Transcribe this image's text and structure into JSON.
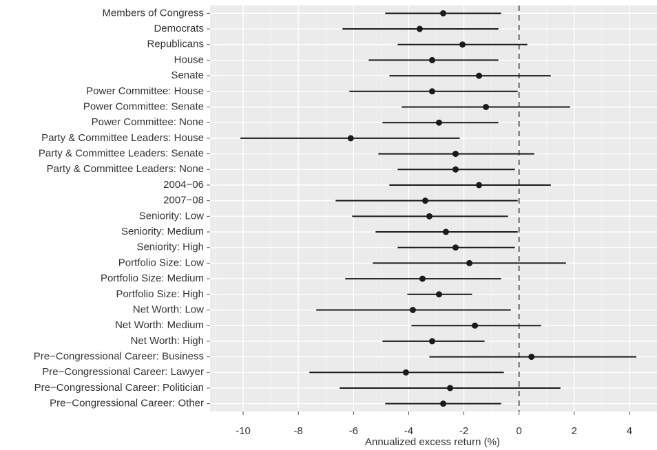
{
  "chart_data": {
    "type": "dot-whisker",
    "x_label": "Annualized excess return (%)",
    "categories": [
      "Members of Congress",
      "Democrats",
      "Republicans",
      "House",
      "Senate",
      "Power Committee: House",
      "Power Committee: Senate",
      "Power Committee: None",
      "Party & Committee Leaders: House",
      "Party & Committee Leaders: Senate",
      "Party & Committee Leaders: None",
      "2004−06",
      "2007−08",
      "Seniority: Low",
      "Seniority: Medium",
      "Seniority: High",
      "Portfolio Size: Low",
      "Portfolio Size: Medium",
      "Portfolio Size: High",
      "Net Worth: Low",
      "Net Worth: Medium",
      "Net Worth: High",
      "Pre−Congressional Career: Business",
      "Pre−Congressional Career: Lawyer",
      "Pre−Congressional Career: Politician",
      "Pre−Congressional Career: Other"
    ],
    "values": [
      -2.75,
      -3.6,
      -2.05,
      -3.15,
      -1.45,
      -3.15,
      -1.2,
      -2.9,
      -6.1,
      -2.3,
      -2.3,
      -1.45,
      -3.4,
      -3.25,
      -2.65,
      -2.3,
      -1.8,
      -3.5,
      -2.9,
      -3.85,
      -1.6,
      -3.15,
      0.45,
      -4.1,
      -2.5,
      -2.75
    ],
    "lower": [
      -4.85,
      -6.4,
      -4.4,
      -5.45,
      -4.7,
      -6.15,
      -4.25,
      -4.95,
      -10.1,
      -5.1,
      -4.4,
      -4.7,
      -6.65,
      -6.05,
      -5.2,
      -4.4,
      -5.3,
      -6.3,
      -4.05,
      -7.35,
      -3.9,
      -4.95,
      -3.25,
      -7.6,
      -6.5,
      -4.85
    ],
    "upper": [
      -0.65,
      -0.75,
      0.3,
      -0.75,
      1.15,
      -0.05,
      1.85,
      -0.75,
      -2.15,
      0.55,
      -0.15,
      1.15,
      -0.05,
      -0.4,
      -0.05,
      -0.15,
      1.7,
      -0.65,
      -1.7,
      -0.3,
      0.8,
      -1.25,
      4.25,
      -0.55,
      1.5,
      -0.65
    ],
    "color": "#1a1a1a",
    "xlim": [
      -11.2,
      5.0
    ],
    "xticks": [
      -10,
      -8,
      -6,
      -4,
      -2,
      0,
      2,
      4
    ],
    "minor_xticks": [
      -11,
      -9,
      -7,
      -5,
      -3,
      -1,
      1,
      3
    ],
    "reference_line": 0,
    "grid": true
  }
}
